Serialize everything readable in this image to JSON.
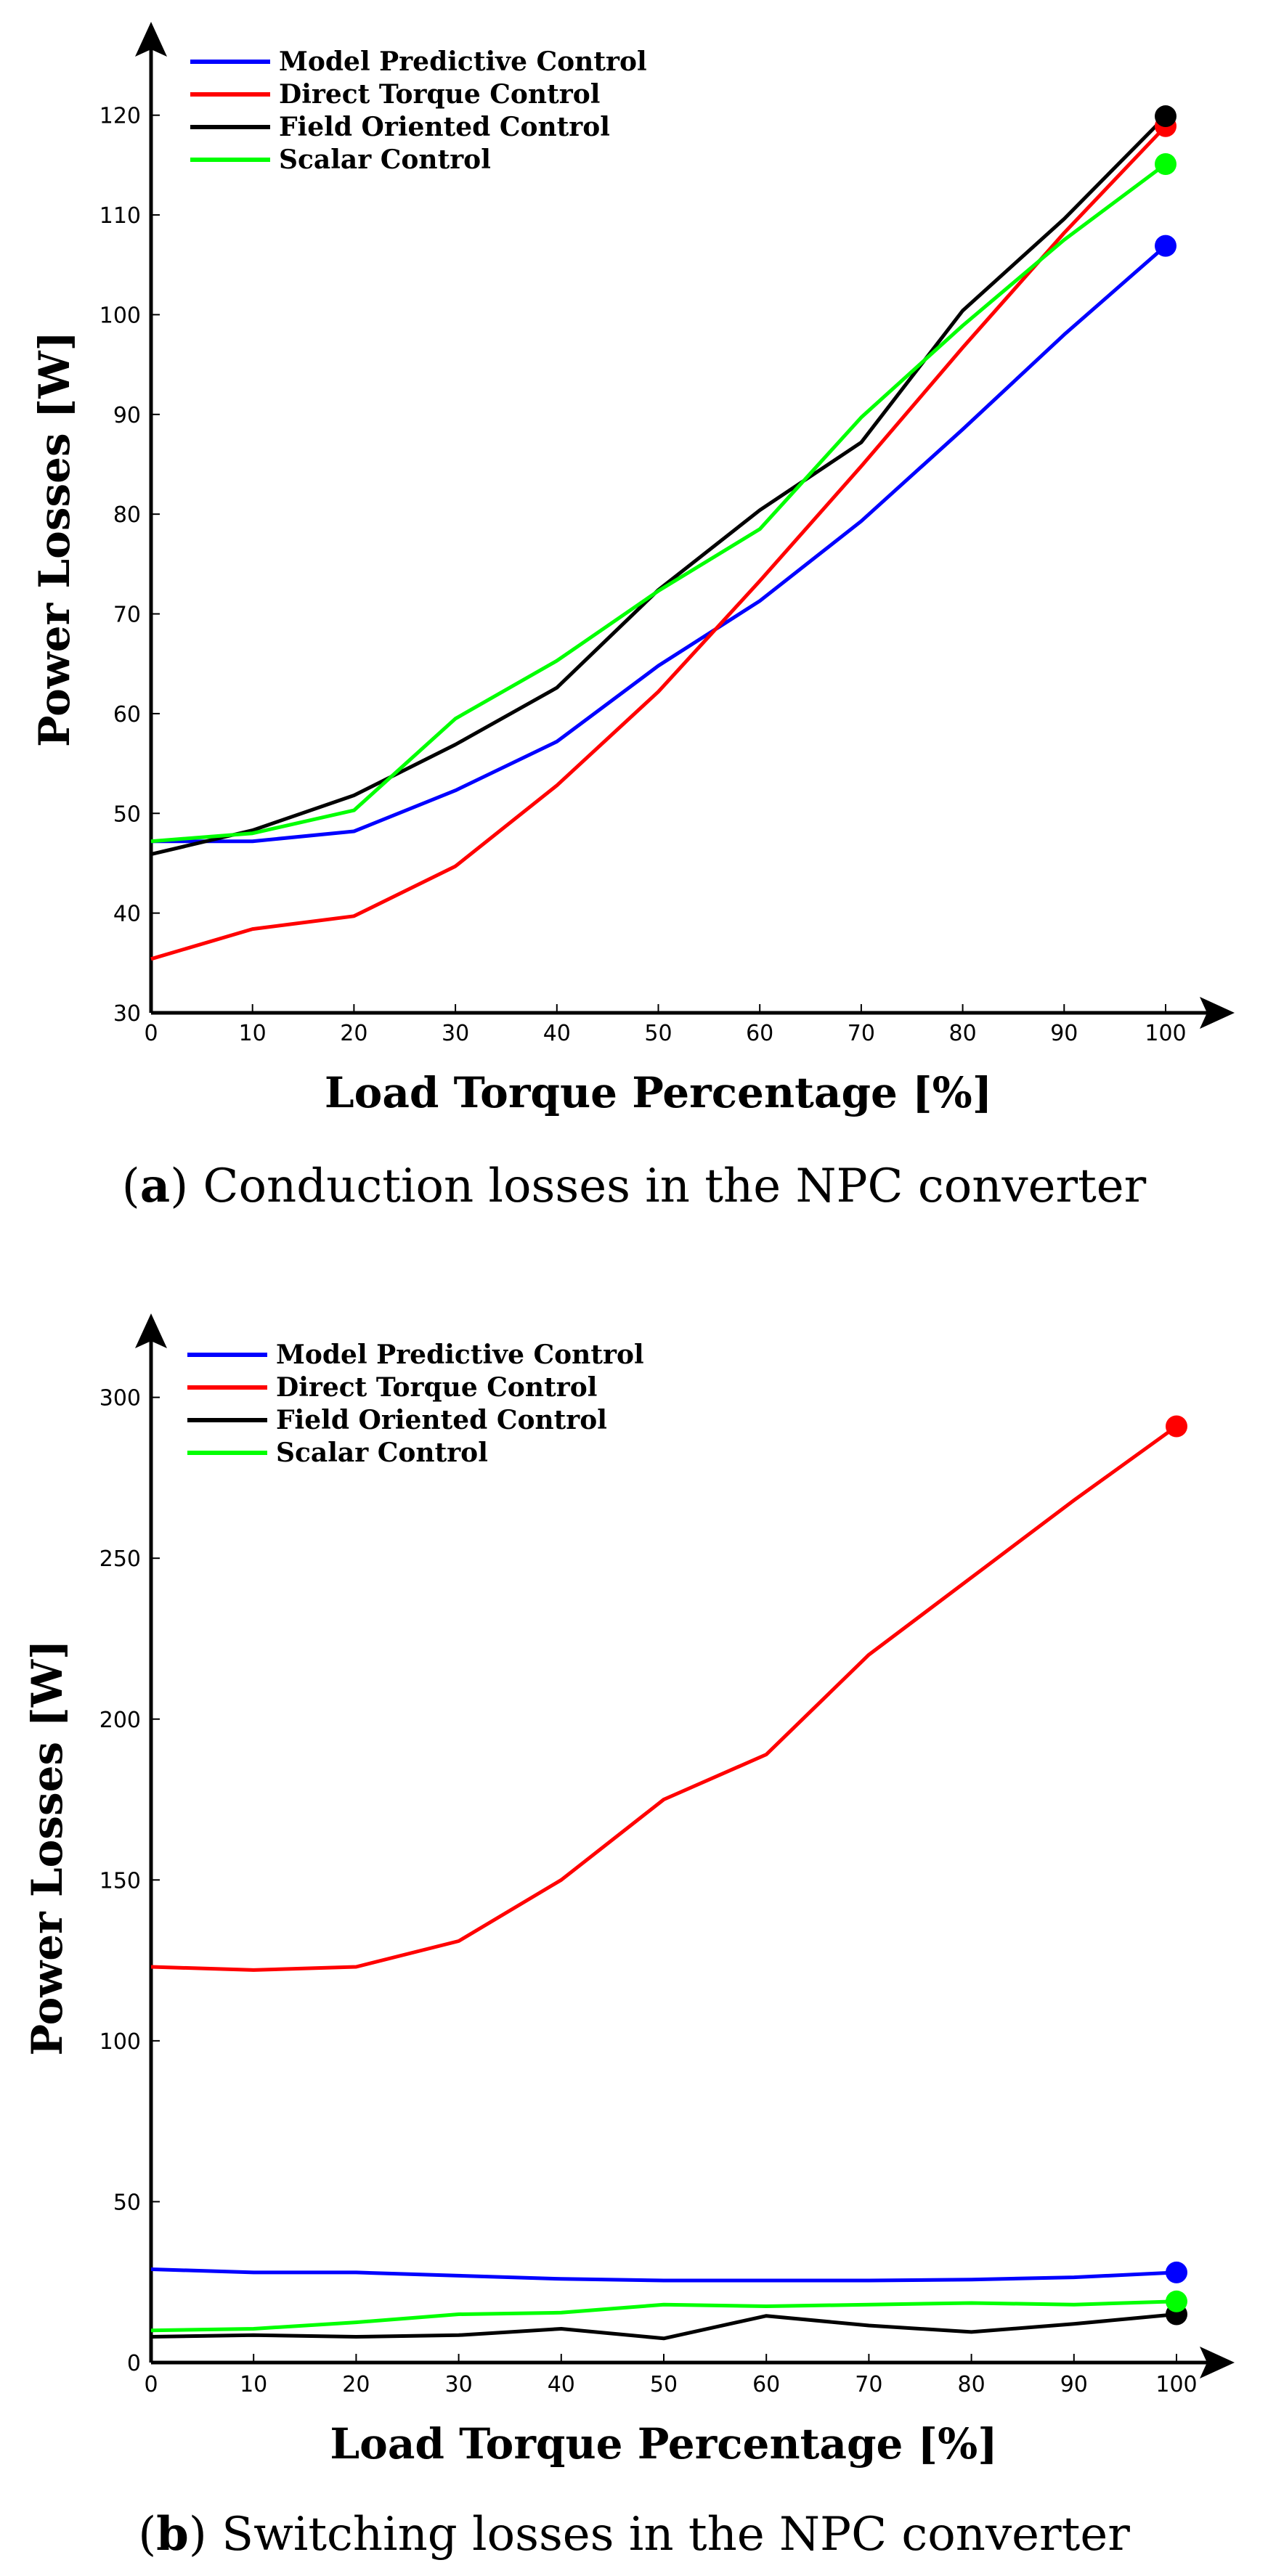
{
  "colors": {
    "Model Predictive Control": "#0000ff",
    "Direct Torque Control": "#ff0000",
    "Field Oriented Control": "#000000",
    "Scalar Control": "#00ff00"
  },
  "chart_data": [
    {
      "type": "line",
      "caption_letter": "a",
      "caption_text": "Conduction losses in the NPC converter",
      "xlabel": "Load Torque Percentage [%]",
      "ylabel": "Power Losses [W]",
      "xlim": [
        0,
        100
      ],
      "ylim": [
        30,
        125
      ],
      "xticks": [
        0,
        10,
        20,
        30,
        40,
        50,
        60,
        70,
        80,
        90,
        100
      ],
      "yticks": [
        30,
        40,
        50,
        60,
        70,
        80,
        90,
        100,
        110,
        120
      ],
      "x": [
        0,
        10,
        20,
        30,
        40,
        50,
        60,
        70,
        80,
        90,
        100
      ],
      "series": [
        {
          "name": "Model Predictive Control",
          "values": [
            47.2,
            47.2,
            48.2,
            52.3,
            57.2,
            64.8,
            71.3,
            79.3,
            88.5,
            98.0,
            106.9
          ]
        },
        {
          "name": "Direct Torque Control",
          "values": [
            35.4,
            38.4,
            39.7,
            44.7,
            52.8,
            62.2,
            73.3,
            84.8,
            96.7,
            108.2,
            118.9
          ]
        },
        {
          "name": "Field Oriented Control",
          "values": [
            45.9,
            48.3,
            51.8,
            56.9,
            62.6,
            72.4,
            80.4,
            87.2,
            100.4,
            109.6,
            119.9
          ]
        },
        {
          "name": "Scalar Control",
          "values": [
            47.2,
            48.0,
            50.3,
            59.5,
            65.3,
            72.3,
            78.5,
            89.7,
            98.9,
            107.5,
            115.1
          ]
        }
      ],
      "legend": [
        "Model Predictive Control",
        "Direct Torque Control",
        "Field Oriented Control",
        "Scalar Control"
      ],
      "legend_position": "top-left",
      "endpoint_markers": true,
      "grid": false
    },
    {
      "type": "line",
      "caption_letter": "b",
      "caption_text": "Switching losses in the NPC converter",
      "xlabel": "Load Torque Percentage [%]",
      "ylabel": "Power Losses [W]",
      "xlim": [
        0,
        100
      ],
      "ylim": [
        0,
        320
      ],
      "xticks": [
        0,
        10,
        20,
        30,
        40,
        50,
        60,
        70,
        80,
        90,
        100
      ],
      "yticks": [
        0,
        50,
        100,
        150,
        200,
        250,
        300
      ],
      "x": [
        0,
        10,
        20,
        30,
        40,
        50,
        60,
        70,
        80,
        90,
        100
      ],
      "series": [
        {
          "name": "Model Predictive Control",
          "values": [
            29,
            28,
            28,
            27,
            26,
            25.5,
            25.5,
            25.5,
            25.8,
            26.5,
            28
          ]
        },
        {
          "name": "Direct Torque Control",
          "values": [
            123,
            122,
            123,
            131,
            150,
            175,
            189,
            220,
            244,
            268,
            291
          ]
        },
        {
          "name": "Field Oriented Control",
          "values": [
            8,
            8.5,
            8,
            8.5,
            10.5,
            7.5,
            14.5,
            11.5,
            9.5,
            12,
            15
          ]
        },
        {
          "name": "Scalar Control",
          "values": [
            10,
            10.5,
            12.5,
            15,
            15.5,
            18,
            17.5,
            18,
            18.5,
            18,
            19
          ]
        }
      ],
      "legend": [
        "Model Predictive Control",
        "Direct Torque Control",
        "Field Oriented Control",
        "Scalar Control"
      ],
      "legend_position": "top-left",
      "endpoint_markers": true,
      "grid": false
    }
  ]
}
